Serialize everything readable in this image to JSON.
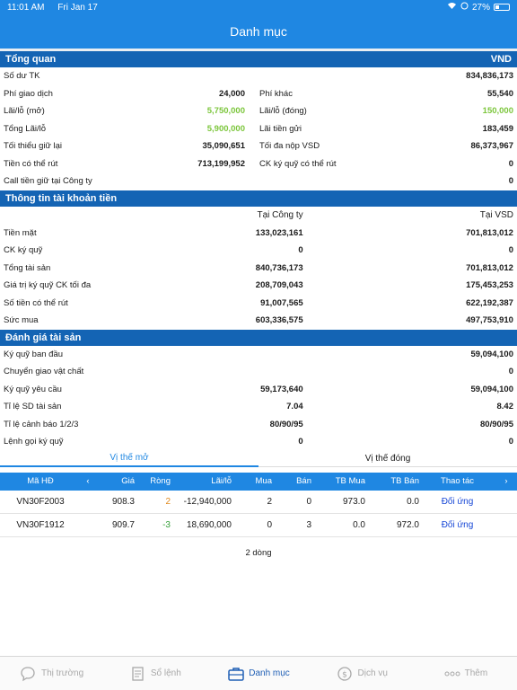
{
  "status": {
    "time": "11:01 AM",
    "date": "Fri Jan 17",
    "battery": "27%"
  },
  "nav": {
    "title": "Danh mục"
  },
  "overview": {
    "title": "Tổng quan",
    "currency": "VND",
    "rows": [
      {
        "l1": "Số dư TK",
        "v1": "",
        "l2": "",
        "v2": "834,836,173"
      },
      {
        "l1": "Phí giao dịch",
        "v1": "24,000",
        "l2": "Phí khác",
        "v2": "55,540"
      },
      {
        "l1": "Lãi/lỗ (mở)",
        "v1": "5,750,000",
        "l2": "Lãi/lỗ (đóng)",
        "v2": "150,000"
      },
      {
        "l1": "Tổng Lãi/lỗ",
        "v1": "5,900,000",
        "l2": "Lãi tiền gửi",
        "v2": "183,459"
      },
      {
        "l1": "Tối thiểu giữ lại",
        "v1": "35,090,651",
        "l2": "Tối đa nộp VSD",
        "v2": "86,373,967"
      },
      {
        "l1": "Tiền có thể rút",
        "v1": "713,199,952",
        "l2": "CK ký quỹ có thể rút",
        "v2": "0"
      },
      {
        "l1": "Call tiền giữ tại Công ty",
        "v1": "",
        "l2": "",
        "v2": "0"
      }
    ]
  },
  "account": {
    "title": "Thông tin tài khoản tiền",
    "col1": "Tại Công ty",
    "col2": "Tại VSD",
    "rows": [
      {
        "label": "Tiền mặt",
        "c1": "133,023,161",
        "c2": "701,813,012"
      },
      {
        "label": "CK ký quỹ",
        "c1": "0",
        "c2": "0"
      },
      {
        "label": "Tổng tài sản",
        "c1": "840,736,173",
        "c2": "701,813,012"
      },
      {
        "label": "Giá trị ký quỹ CK tối đa",
        "c1": "208,709,043",
        "c2": "175,453,253"
      },
      {
        "label": "Số tiền có thể rút",
        "c1": "91,007,565",
        "c2": "622,192,387"
      },
      {
        "label": "Sức mua",
        "c1": "603,336,575",
        "c2": "497,753,910"
      }
    ]
  },
  "assets": {
    "title": "Đánh giá tài sản",
    "rows": [
      {
        "label": "Ký quỹ ban đầu",
        "c1": "",
        "c2": "59,094,100"
      },
      {
        "label": "Chuyển giao vật chất",
        "c1": "",
        "c2": "0"
      },
      {
        "label": "Ký quỹ yêu cầu",
        "c1": "59,173,640",
        "c2": "59,094,100"
      },
      {
        "label": "Tỉ lệ SD tài sản",
        "c1": "7.04",
        "c2": "8.42"
      },
      {
        "label": "Tỉ lệ cảnh báo 1/2/3",
        "c1": "80/90/95",
        "c2": "80/90/95"
      },
      {
        "label": "Lệnh gọi ký quỹ",
        "c1": "0",
        "c2": "0"
      }
    ]
  },
  "tabs": {
    "open": "Vị thế mở",
    "closed": "Vị thế đóng"
  },
  "grid": {
    "headers": {
      "code": "Mã HĐ",
      "price": "Giá",
      "net": "Ròng",
      "pl": "Lãi/lỗ",
      "buy": "Mua",
      "sell": "Bán",
      "avgbuy": "TB Mua",
      "avgsell": "TB Bán",
      "action": "Thao tác"
    },
    "rows": [
      {
        "code": "VN30F2003",
        "price": "908.3",
        "net": "2",
        "pl": "-12,940,000",
        "buy": "2",
        "sell": "0",
        "avgbuy": "973.0",
        "avgsell": "0.0",
        "action": "Đối ứng"
      },
      {
        "code": "VN30F1912",
        "price": "909.7",
        "net": "-3",
        "pl": "18,690,000",
        "buy": "0",
        "sell": "3",
        "avgbuy": "0.0",
        "avgsell": "972.0",
        "action": "Đối ứng"
      }
    ],
    "count": "2 dòng"
  },
  "tabbar": [
    {
      "label": "Thị trường",
      "icon": "chat-bubble-icon"
    },
    {
      "label": "Sổ lệnh",
      "icon": "document-icon"
    },
    {
      "label": "Danh mục",
      "icon": "briefcase-icon"
    },
    {
      "label": "Dịch vụ",
      "icon": "dollar-cycle-icon"
    },
    {
      "label": "Thêm",
      "icon": "more-dots-icon"
    }
  ]
}
